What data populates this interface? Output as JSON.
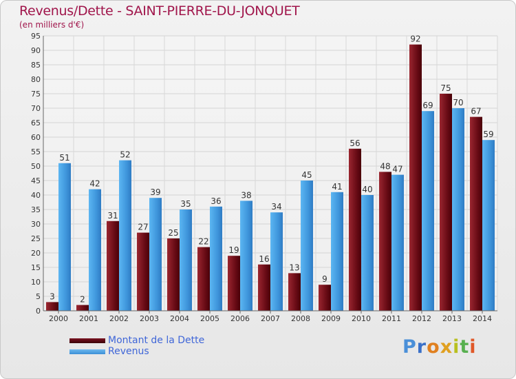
{
  "header": {
    "title": "Revenus/Dette - SAINT-PIERRE-DU-JONQUET",
    "subtitle": "(en milliers d'€)"
  },
  "legend": {
    "debt_label": "Montant de la Dette",
    "revenue_label": "Revenus"
  },
  "brand": {
    "letters": [
      "P",
      "r",
      "o",
      "x",
      "i",
      "t",
      "i"
    ],
    "colors": [
      "#4a8fd8",
      "#3a70c8",
      "#e08020",
      "#e0a020",
      "#b8c020",
      "#58b050",
      "#e05828"
    ]
  },
  "chart_data": {
    "type": "bar",
    "categories": [
      "2000",
      "2001",
      "2002",
      "2003",
      "2004",
      "2005",
      "2006",
      "2007",
      "2008",
      "2009",
      "2010",
      "2011",
      "2012",
      "2013",
      "2014"
    ],
    "series": [
      {
        "name": "Montant de la Dette",
        "color": "#7a1a22",
        "values": [
          3,
          2,
          31,
          27,
          25,
          22,
          19,
          16,
          13,
          9,
          56,
          48,
          92,
          75,
          67
        ]
      },
      {
        "name": "Revenus",
        "color": "#4fa6e6",
        "values": [
          51,
          42,
          52,
          39,
          35,
          36,
          38,
          34,
          45,
          41,
          40,
          47,
          69,
          70,
          59
        ]
      }
    ],
    "title": "Revenus/Dette - SAINT-PIERRE-DU-JONQUET",
    "subtitle": "(en milliers d'€)",
    "ylim": [
      0,
      95
    ],
    "yticks": [
      0,
      5,
      10,
      15,
      20,
      25,
      30,
      35,
      40,
      45,
      50,
      55,
      60,
      65,
      70,
      75,
      80,
      85,
      90,
      95
    ],
    "grid": true,
    "legend_position": "bottom-left"
  }
}
